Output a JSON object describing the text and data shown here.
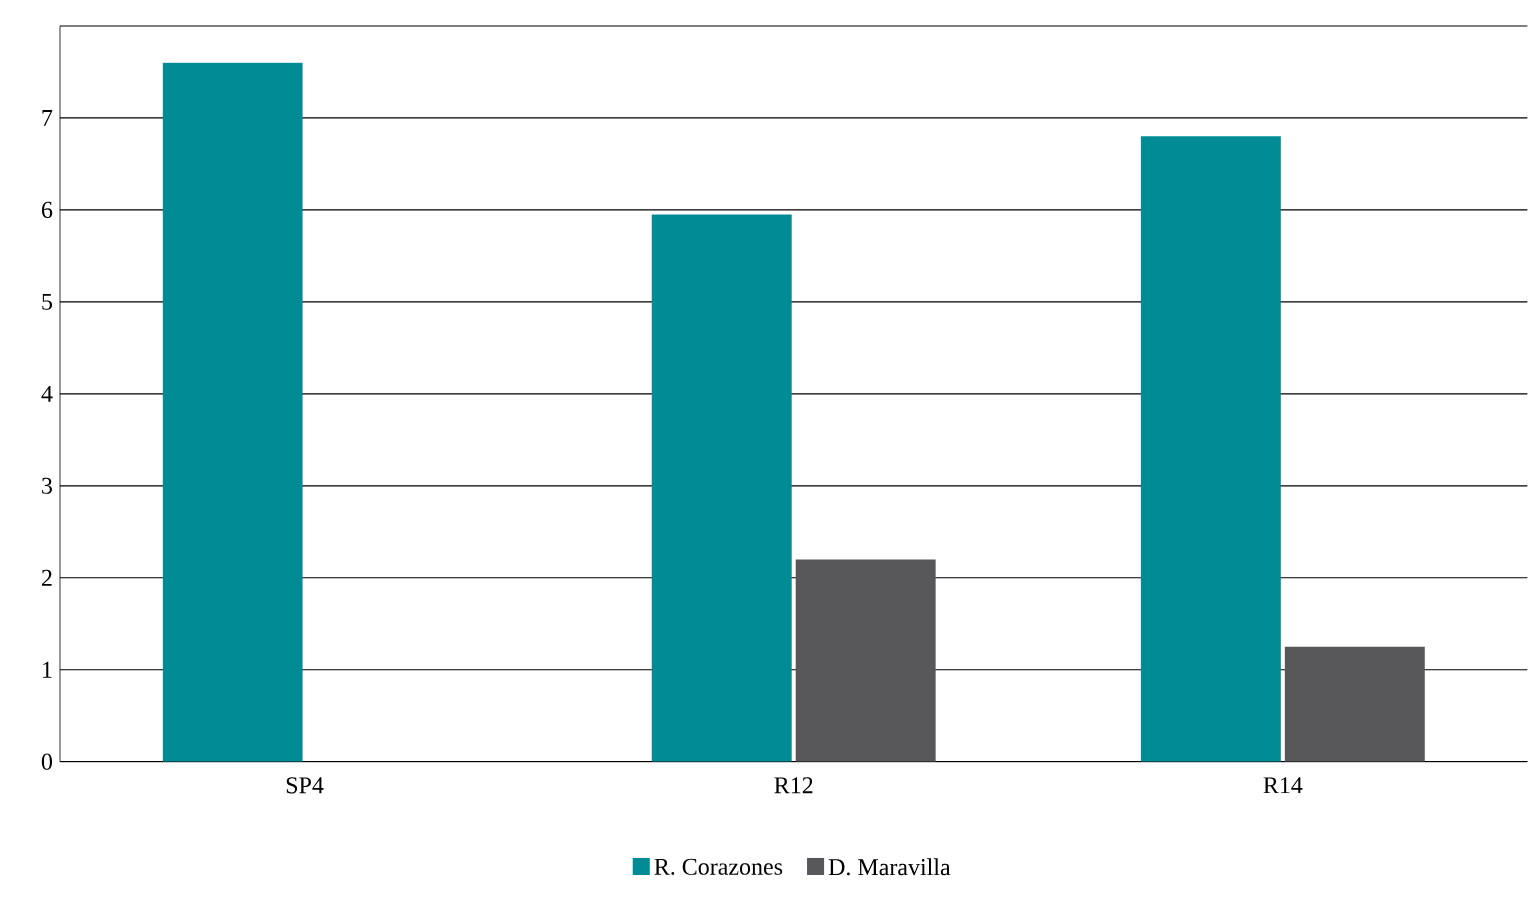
{
  "chart_data": {
    "type": "bar",
    "categories": [
      "SP4",
      "R12",
      "R14"
    ],
    "series": [
      {
        "name": "R. Corazones",
        "color": "#008b95",
        "values": [
          7.6,
          5.95,
          6.8
        ]
      },
      {
        "name": "D. Maravilla",
        "color": "#58585a",
        "values": [
          null,
          2.2,
          1.25
        ]
      }
    ],
    "ylim": [
      0,
      8
    ],
    "yticks": [
      0,
      1,
      2,
      3,
      4,
      5,
      6,
      7,
      {
        "value": 8,
        "label": null
      }
    ],
    "grid": "y",
    "legend": "bottom"
  }
}
